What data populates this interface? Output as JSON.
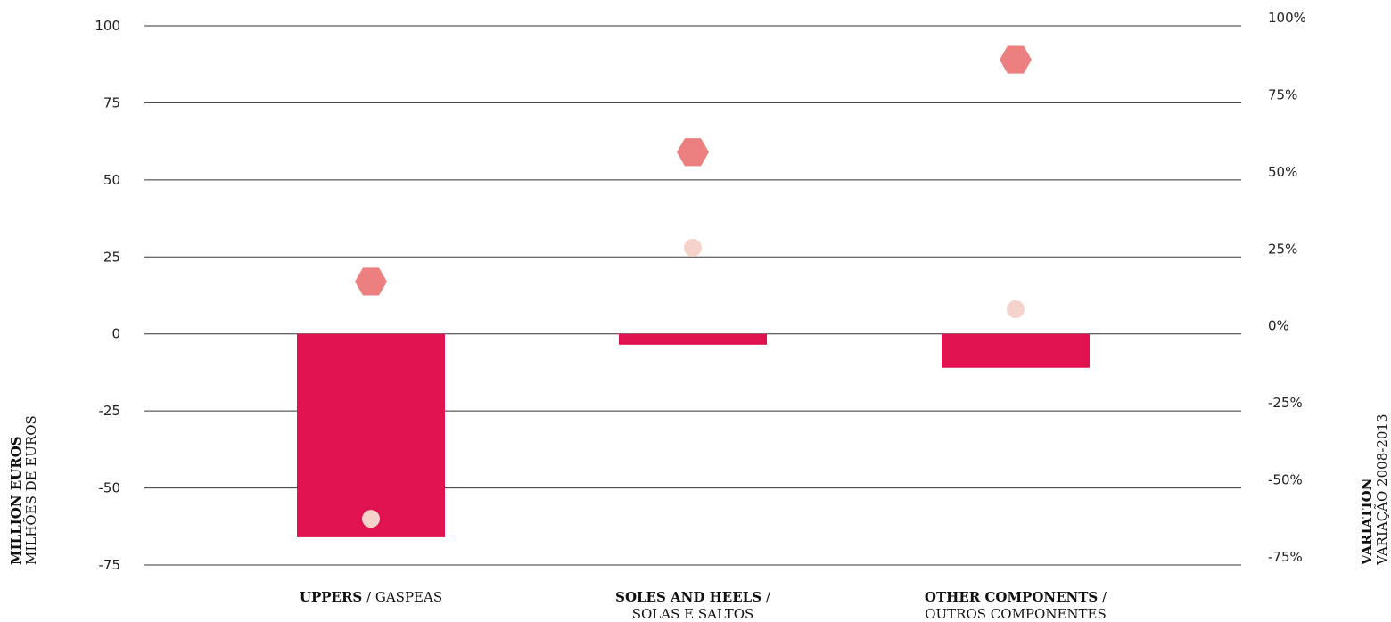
{
  "chart_data": {
    "type": "bar",
    "categories": [
      {
        "bold": "UPPERS",
        "sep": " / ",
        "rest": "GASPEAS",
        "line2": ""
      },
      {
        "bold": "SOLES AND HEELS",
        "sep": " /",
        "rest": "",
        "line2": "SOLAS E SALTOS"
      },
      {
        "bold": "OTHER COMPONENTS",
        "sep": " /",
        "rest": "",
        "line2": "OUTROS COMPONENTES"
      }
    ],
    "bar_values": [
      -66,
      -3.5,
      -11
    ],
    "hexagon_variation_pct": [
      17,
      59,
      89
    ],
    "circle_variation_pct": [
      -60,
      28,
      8
    ],
    "ylim_left": [
      -75,
      100
    ],
    "ylim_right": [
      -75,
      100
    ],
    "yticks_left": [
      "100",
      "75",
      "50",
      "25",
      "0",
      "-25",
      "-50",
      "-75"
    ],
    "yticks_right": [
      "100%",
      "75%",
      "50%",
      "25%",
      "0%",
      "-25%",
      "-50%",
      "-75%"
    ],
    "ylabel_left": {
      "bold": "MILLION EUROS",
      "normal": "MILHÕES DE EUROS"
    },
    "ylabel_right": {
      "bold": "VARIATION",
      "normal": "VARIAÇÃO 2008-2013"
    },
    "grid": true,
    "colors": {
      "bar": "#e0124f",
      "hexagon": "#ec8080",
      "circle": "#f6d2cc",
      "grid": "#333333"
    }
  }
}
